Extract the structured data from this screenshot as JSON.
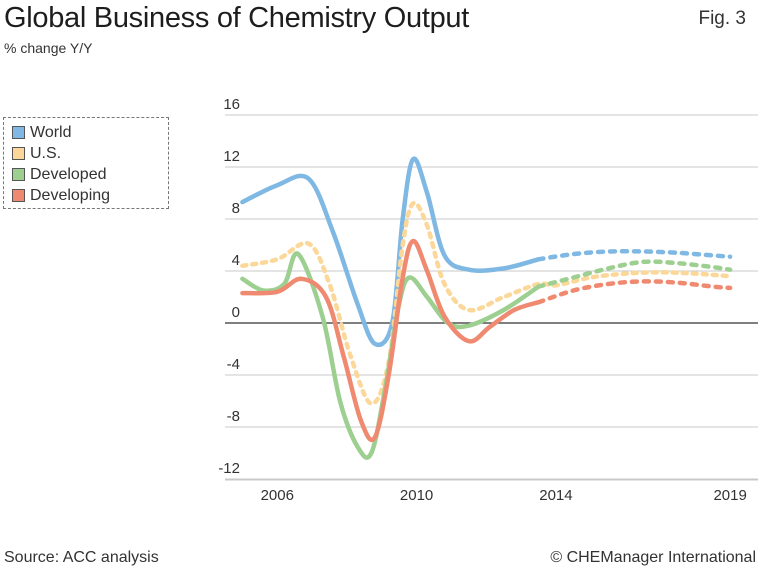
{
  "header": {
    "title": "Global Business of Chemistry Output",
    "subtitle": "% change Y/Y",
    "fig_label": "Fig. 3"
  },
  "footer": {
    "source": "Source: ACC analysis",
    "credit": "© CHEManager International"
  },
  "chart_data": {
    "type": "line",
    "title": "Global Business of Chemistry Output",
    "ylabel": "% change Y/Y",
    "xlabel": "",
    "xlim": [
      2004.5,
      2019.8
    ],
    "ylim": [
      -12,
      16
    ],
    "y_ticks": [
      16,
      12,
      8,
      4,
      0,
      -4,
      -8,
      -12
    ],
    "x_ticks": [
      2006,
      2010,
      2014,
      2019
    ],
    "grid": true,
    "legend": "left",
    "forecast_start": 2013.5,
    "series": [
      {
        "name": "World",
        "color": "#7fb8e3",
        "points": [
          [
            2005,
            9.3
          ],
          [
            2006,
            10.6
          ],
          [
            2006.9,
            11.1
          ],
          [
            2007.6,
            7
          ],
          [
            2008.3,
            1.5
          ],
          [
            2008.8,
            -1.6
          ],
          [
            2009.3,
            0
          ],
          [
            2009.6,
            8
          ],
          [
            2009.9,
            12.6
          ],
          [
            2010.3,
            10
          ],
          [
            2010.8,
            5.2
          ],
          [
            2011.5,
            4.1
          ],
          [
            2012.5,
            4.2
          ],
          [
            2013.5,
            4.9
          ],
          [
            2014.5,
            5.3
          ],
          [
            2015.5,
            5.5
          ],
          [
            2016.5,
            5.5
          ],
          [
            2017.5,
            5.4
          ],
          [
            2018.5,
            5.2
          ],
          [
            2019,
            5.1
          ]
        ]
      },
      {
        "name": "U.S.",
        "color": "#fbd89a",
        "points": [
          [
            2005,
            4.4
          ],
          [
            2006,
            4.9
          ],
          [
            2006.9,
            6.1
          ],
          [
            2007.5,
            3
          ],
          [
            2008.1,
            -2.5
          ],
          [
            2008.7,
            -6.2
          ],
          [
            2009.2,
            -3
          ],
          [
            2009.6,
            6
          ],
          [
            2009.9,
            9.2
          ],
          [
            2010.3,
            7.5
          ],
          [
            2010.8,
            3
          ],
          [
            2011.5,
            1
          ],
          [
            2012.5,
            2
          ],
          [
            2013.5,
            3
          ],
          [
            2014,
            2.9
          ],
          [
            2015,
            3.5
          ],
          [
            2016,
            3.8
          ],
          [
            2017,
            3.9
          ],
          [
            2018,
            3.8
          ],
          [
            2019,
            3.6
          ]
        ]
      },
      {
        "name": "Developed",
        "color": "#9ccf90",
        "points": [
          [
            2005,
            3.4
          ],
          [
            2005.6,
            2.5
          ],
          [
            2006.2,
            3
          ],
          [
            2006.6,
            5.3
          ],
          [
            2007.3,
            0.5
          ],
          [
            2007.8,
            -6
          ],
          [
            2008.3,
            -9.5
          ],
          [
            2008.7,
            -10
          ],
          [
            2009.1,
            -5
          ],
          [
            2009.5,
            1.5
          ],
          [
            2009.8,
            3.5
          ],
          [
            2010.3,
            2
          ],
          [
            2010.9,
            0
          ],
          [
            2011.5,
            -0.2
          ],
          [
            2012.5,
            1
          ],
          [
            2013.5,
            2.8
          ],
          [
            2014.5,
            3.5
          ],
          [
            2015.5,
            4.2
          ],
          [
            2016.5,
            4.7
          ],
          [
            2017.5,
            4.6
          ],
          [
            2018.5,
            4.3
          ],
          [
            2019,
            4.1
          ]
        ]
      },
      {
        "name": "Developing",
        "color": "#ef8a70",
        "points": [
          [
            2005,
            2.3
          ],
          [
            2006,
            2.4
          ],
          [
            2006.7,
            3.4
          ],
          [
            2007.4,
            2
          ],
          [
            2007.9,
            -2.5
          ],
          [
            2008.4,
            -7.5
          ],
          [
            2008.8,
            -8.8
          ],
          [
            2009.2,
            -4
          ],
          [
            2009.6,
            3.5
          ],
          [
            2009.9,
            6.3
          ],
          [
            2010.3,
            4
          ],
          [
            2010.8,
            0.5
          ],
          [
            2011.5,
            -1.4
          ],
          [
            2012.1,
            -0.3
          ],
          [
            2012.8,
            1
          ],
          [
            2013.5,
            1.6
          ],
          [
            2014.5,
            2.5
          ],
          [
            2015.5,
            3
          ],
          [
            2016.5,
            3.2
          ],
          [
            2017.5,
            3.1
          ],
          [
            2018.5,
            2.8
          ],
          [
            2019,
            2.7
          ]
        ]
      }
    ]
  }
}
